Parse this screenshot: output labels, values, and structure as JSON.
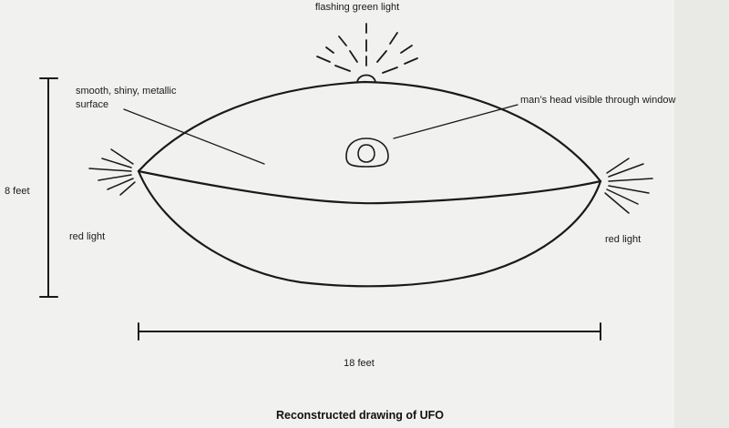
{
  "labels": {
    "top_light": "flashing green light",
    "surface_line1": "smooth, shiny, metallic",
    "surface_line2": "surface",
    "window": "man’s head visible through window",
    "height": "8 feet",
    "red_left": "red light",
    "red_right": "red light",
    "width": "18 feet"
  },
  "caption": "Reconstructed drawing of UFO",
  "colors": {
    "paper": "#f1f1ef",
    "ink": "#1a1a1a"
  }
}
